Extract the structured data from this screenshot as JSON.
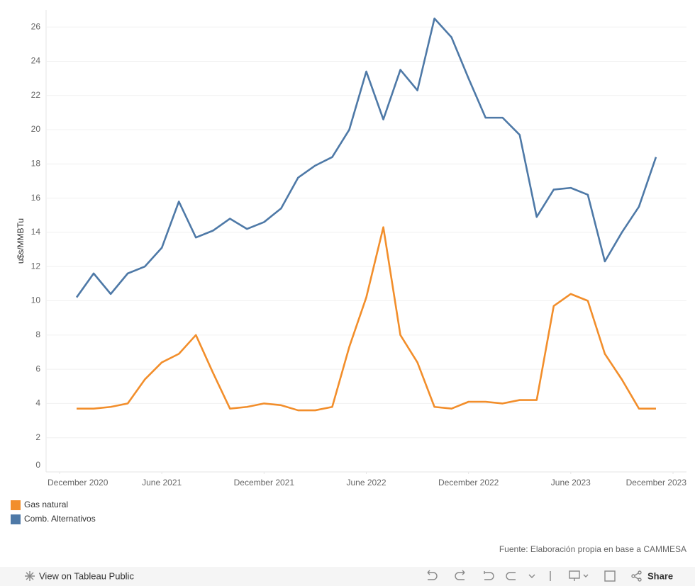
{
  "chart_data": {
    "type": "line",
    "y_label": "u$s/MMBTu",
    "x": [
      "2021-01",
      "2021-02",
      "2021-03",
      "2021-04",
      "2021-05",
      "2021-06",
      "2021-07",
      "2021-08",
      "2021-09",
      "2021-10",
      "2021-11",
      "2021-12",
      "2022-01",
      "2022-02",
      "2022-03",
      "2022-04",
      "2022-05",
      "2022-06",
      "2022-07",
      "2022-08",
      "2022-09",
      "2022-10",
      "2022-11",
      "2022-12",
      "2023-01",
      "2023-02",
      "2023-03",
      "2023-04",
      "2023-05",
      "2023-06",
      "2023-07",
      "2023-08",
      "2023-09",
      "2023-10",
      "2023-11"
    ],
    "series": [
      {
        "name": "Gas natural",
        "color": "#f28e2b",
        "values": [
          3.7,
          3.7,
          3.8,
          4.0,
          5.4,
          6.4,
          6.9,
          8.0,
          5.8,
          3.7,
          3.8,
          4.0,
          3.9,
          3.6,
          3.6,
          3.8,
          7.3,
          10.2,
          14.3,
          8.0,
          6.4,
          3.8,
          3.7,
          4.1,
          4.1,
          4.0,
          4.2,
          4.2,
          9.7,
          10.4,
          10.0,
          6.9,
          5.4,
          3.7,
          3.7
        ]
      },
      {
        "name": "Comb. Alternativos",
        "color": "#4e79a7",
        "values": [
          10.2,
          11.6,
          10.4,
          11.6,
          12.0,
          13.1,
          15.8,
          13.7,
          14.1,
          14.8,
          14.2,
          14.6,
          15.4,
          17.2,
          17.9,
          18.4,
          20.0,
          23.4,
          20.6,
          23.5,
          22.3,
          26.5,
          25.4,
          23.0,
          20.7,
          20.7,
          19.7,
          14.9,
          16.5,
          16.6,
          16.2,
          12.3,
          14.0,
          15.5,
          18.4
        ]
      }
    ],
    "xlim": [
      "2020-12",
      "2023-12"
    ],
    "xticks": [
      {
        "value": "2020-12",
        "label": "December 2020"
      },
      {
        "value": "2021-06",
        "label": "June 2021"
      },
      {
        "value": "2021-12",
        "label": "December 2021"
      },
      {
        "value": "2022-06",
        "label": "June 2022"
      },
      {
        "value": "2022-12",
        "label": "December 2022"
      },
      {
        "value": "2023-06",
        "label": "June 2023"
      },
      {
        "value": "2023-12",
        "label": "December 2023"
      }
    ],
    "ylim": [
      0,
      27
    ],
    "yticks": [
      0,
      2,
      4,
      6,
      8,
      10,
      12,
      14,
      16,
      18,
      20,
      22,
      24,
      26
    ],
    "grid": true,
    "legend": "bottom-left",
    "source": "Fuente: Elaboración propia en base a CAMMESA"
  },
  "toolbar": {
    "view": "View on Tableau Public",
    "share": "Share"
  }
}
